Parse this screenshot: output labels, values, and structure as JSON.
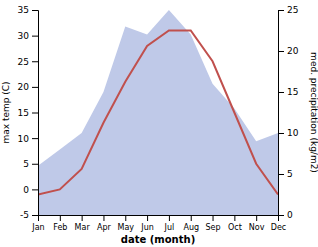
{
  "chart_data": {
    "type": "line",
    "categories": [
      "Jan",
      "Feb",
      "Mar",
      "Apr",
      "May",
      "Jun",
      "Jul",
      "Aug",
      "Sep",
      "Oct",
      "Nov",
      "Dec"
    ],
    "xlabel": "date (month)",
    "ylabel": "max temp (C)",
    "y2label": "med. precipitation (kg/m2)",
    "ylim": [
      -5,
      35
    ],
    "yticks": [
      -5,
      0,
      5,
      10,
      15,
      20,
      25,
      30,
      35
    ],
    "y2lim": [
      0,
      25
    ],
    "y2ticks": [
      0,
      5,
      10,
      15,
      20,
      25
    ],
    "series": [
      {
        "type": "area",
        "axis": "y2",
        "color": "#bfc9e8",
        "values": [
          6,
          8,
          10,
          15,
          23,
          22,
          25,
          22,
          16,
          13,
          9,
          10
        ]
      },
      {
        "type": "line",
        "color": "#c0504d",
        "values": [
          -1,
          0,
          4,
          13,
          21,
          28,
          31,
          31,
          25,
          15,
          5,
          -1
        ]
      }
    ]
  }
}
